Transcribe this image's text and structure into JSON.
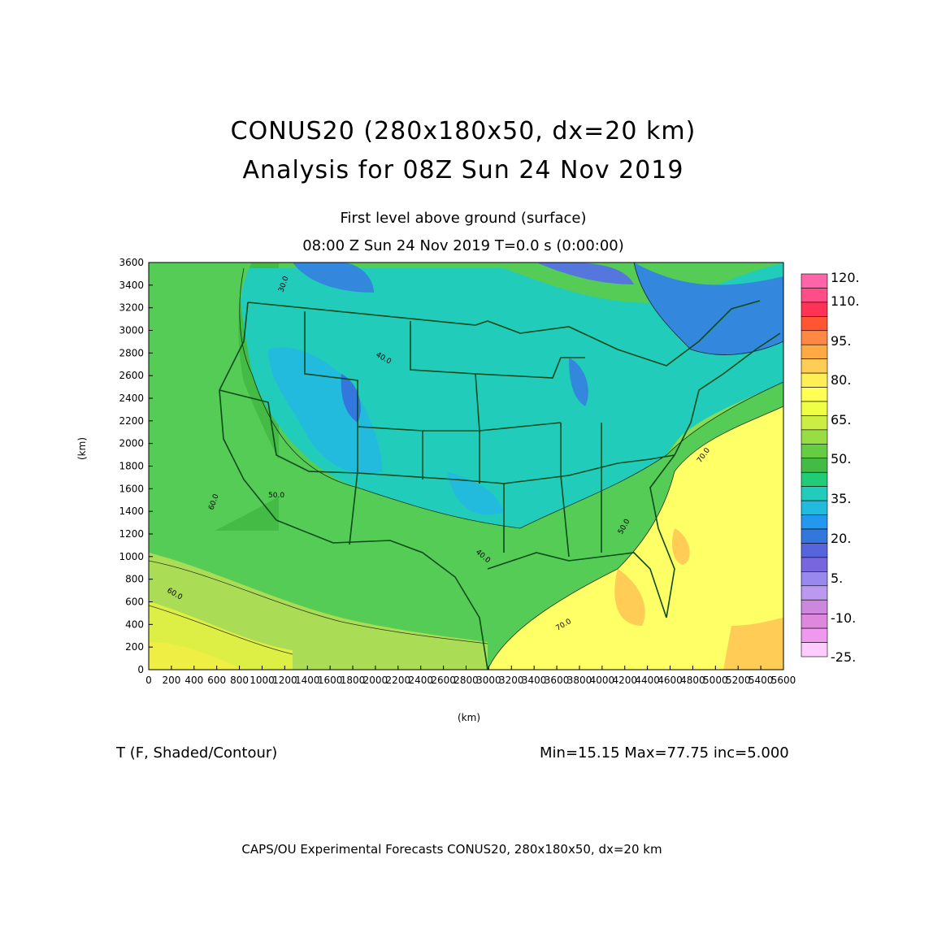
{
  "title": {
    "line1": "CONUS20 (280x180x50, dx=20 km)",
    "line2": "Analysis for 08Z Sun 24 Nov 2019",
    "sub1": "First level above ground (surface)",
    "sub2": "08:00 Z Sun 24 Nov 2019    T=0.0 s (0:00:00)"
  },
  "axes": {
    "x_label": "(km)",
    "y_label": "(km)",
    "x_ticks": [
      "0",
      "200",
      "400",
      "600",
      "800",
      "1000",
      "1200",
      "1400",
      "1600",
      "1800",
      "2000",
      "2200",
      "2400",
      "2600",
      "2800",
      "3000",
      "3200",
      "3400",
      "3600",
      "3800",
      "4000",
      "4200",
      "4400",
      "4600",
      "4800",
      "5000",
      "5200",
      "5400",
      "5600"
    ],
    "y_ticks": [
      "0",
      "200",
      "400",
      "600",
      "800",
      "1000",
      "1200",
      "1400",
      "1600",
      "1800",
      "2000",
      "2200",
      "2400",
      "2600",
      "2800",
      "3000",
      "3200",
      "3400",
      "3600"
    ],
    "x_range": [
      0,
      5600
    ],
    "y_range": [
      0,
      3600
    ]
  },
  "colorbar": {
    "labels": [
      "120.",
      "110.",
      "95.",
      "80.",
      "65.",
      "50.",
      "35.",
      "20.",
      "5.",
      "-10.",
      "-25."
    ],
    "colors": [
      "#ff66aa",
      "#ff4d88",
      "#ff3355",
      "#ff5533",
      "#ff8844",
      "#ffaa44",
      "#ffcc55",
      "#ffee55",
      "#ffff55",
      "#eeff44",
      "#ccee44",
      "#99dd44",
      "#66cc44",
      "#44bb44",
      "#22cc77",
      "#22ccbb",
      "#22bbdd",
      "#2299ee",
      "#3377dd",
      "#5566dd",
      "#7766dd",
      "#9988ee",
      "#bb99ee",
      "#cc88dd",
      "#dd88dd",
      "#ee99ee",
      "#ffccff"
    ]
  },
  "contour_labels": [
    "30.0",
    "40.0",
    "50.0",
    "60.0",
    "70.0"
  ],
  "variable": "T (F, Shaded/Contour)",
  "stats": "Min=15.15 Max=77.75 inc=5.000",
  "footer": "CAPS/OU Experimental Forecasts  CONUS20, 280x180x50, dx=20 km"
}
